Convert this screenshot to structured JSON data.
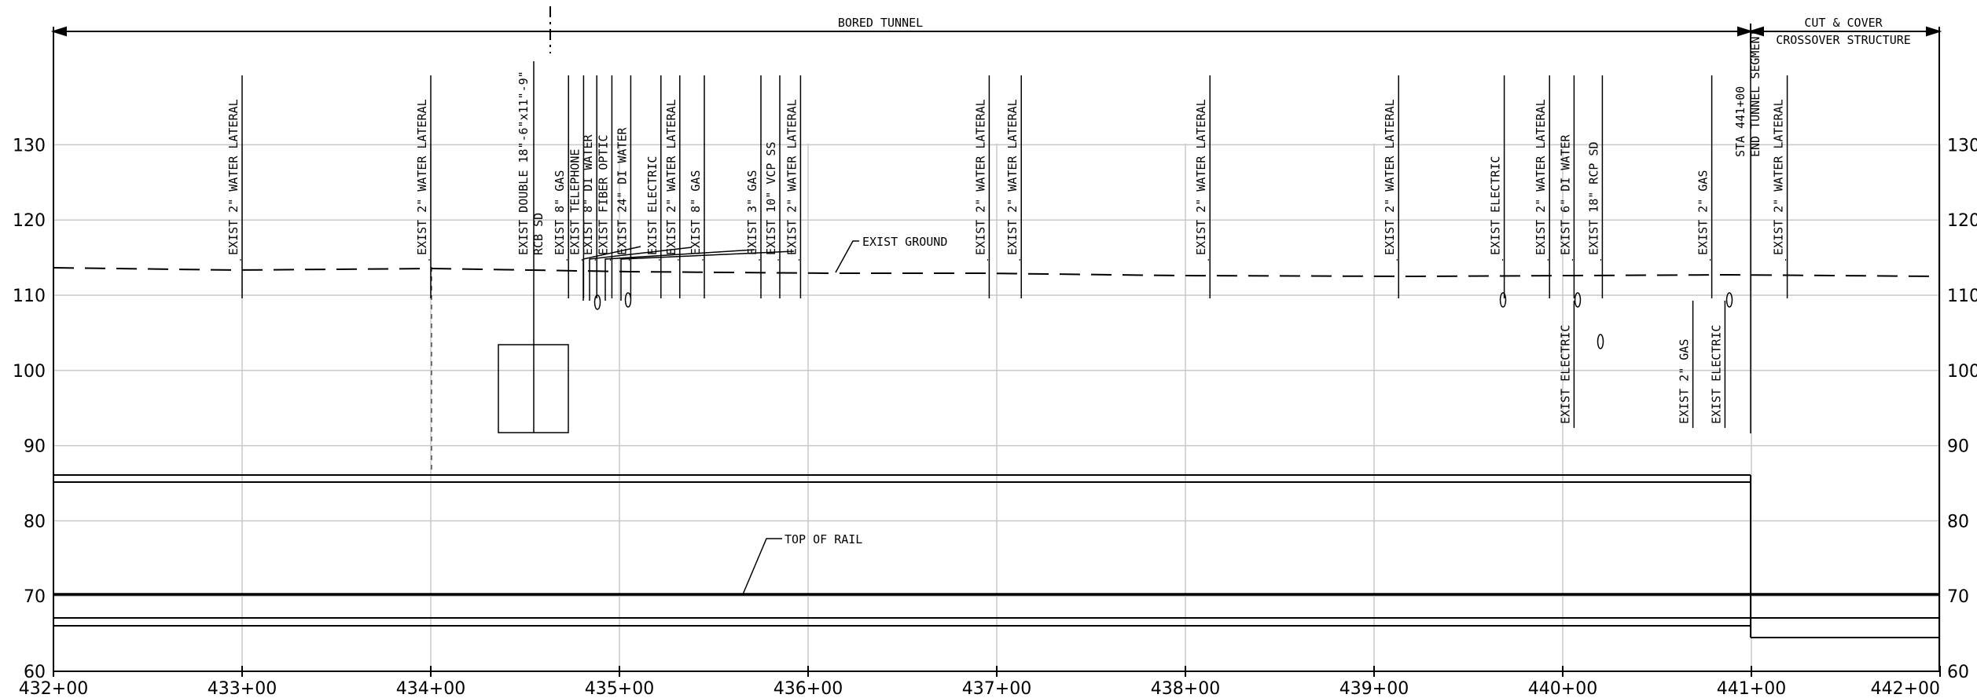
{
  "title_bored_tunnel": "BORED TUNNEL",
  "title_cut_cover_1": "CUT & COVER",
  "title_cut_cover_2": "CROSSOVER STRUCTURE",
  "label_exist_ground": "EXIST GROUND",
  "label_top_of_rail": "TOP OF RAIL",
  "label_sta": "STA 441+00",
  "label_end_tunnel": "END TUNNEL SEGMENT",
  "label_rcb_1": "EXIST DOUBLE 18\"-6\"x11\"-9\"",
  "label_rcb_2": "RCB SD",
  "elevation_ticks": [
    "130",
    "120",
    "110",
    "100",
    "90",
    "80",
    "70",
    "60"
  ],
  "station_ticks": [
    "432+00",
    "433+00",
    "434+00",
    "435+00",
    "436+00",
    "437+00",
    "438+00",
    "439+00",
    "440+00",
    "441+00",
    "442+00"
  ],
  "utilities": [
    {
      "label": "EXIST 2\" WATER LATERAL",
      "sta": 433.0
    },
    {
      "label": "EXIST 2\" WATER LATERAL",
      "sta": 434.0
    },
    {
      "label": "EXIST 8\" GAS",
      "sta": 434.73
    },
    {
      "label": "EXIST TELEPHONE",
      "sta": 434.81
    },
    {
      "label": "EXIST 8\" DI WATER",
      "sta": 434.88
    },
    {
      "label": "EXIST FIBER OPTIC",
      "sta": 434.96
    },
    {
      "label": "EXIST 24\" DI WATER",
      "sta": 435.06
    },
    {
      "label": "EXIST ELECTRIC",
      "sta": 435.22
    },
    {
      "label": "EXIST 2\" WATER LATERAL",
      "sta": 435.32
    },
    {
      "label": "EXIST 8\" GAS",
      "sta": 435.45
    },
    {
      "label": "EXIST 3\" GAS",
      "sta": 435.75
    },
    {
      "label": "EXIST 10\" VCP SS",
      "sta": 435.85
    },
    {
      "label": "EXIST 2\" WATER LATERAL",
      "sta": 435.96
    },
    {
      "label": "EXIST 2\" WATER LATERAL",
      "sta": 436.96
    },
    {
      "label": "EXIST 2\" WATER LATERAL",
      "sta": 437.13
    },
    {
      "label": "EXIST 2\" WATER LATERAL",
      "sta": 438.13
    },
    {
      "label": "EXIST 2\" WATER LATERAL",
      "sta": 439.13
    },
    {
      "label": "EXIST ELECTRIC",
      "sta": 439.69
    },
    {
      "label": "EXIST 2\" WATER LATERAL",
      "sta": 439.93
    },
    {
      "label": "EXIST 6\" DI WATER",
      "sta": 440.06
    },
    {
      "label": "EXIST 18\" RCP SD",
      "sta": 440.21
    },
    {
      "label": "EXIST 2\" GAS",
      "sta": 440.79
    },
    {
      "label": "EXIST 2\" WATER LATERAL",
      "sta": 441.19
    },
    {
      "label": "EXIST ELECTRIC",
      "sta": 440.06,
      "below": true
    },
    {
      "label": "EXIST 2\" GAS",
      "sta": 440.69,
      "below": true
    },
    {
      "label": "EXIST ELECTRIC",
      "sta": 440.86,
      "below": true
    }
  ]
}
